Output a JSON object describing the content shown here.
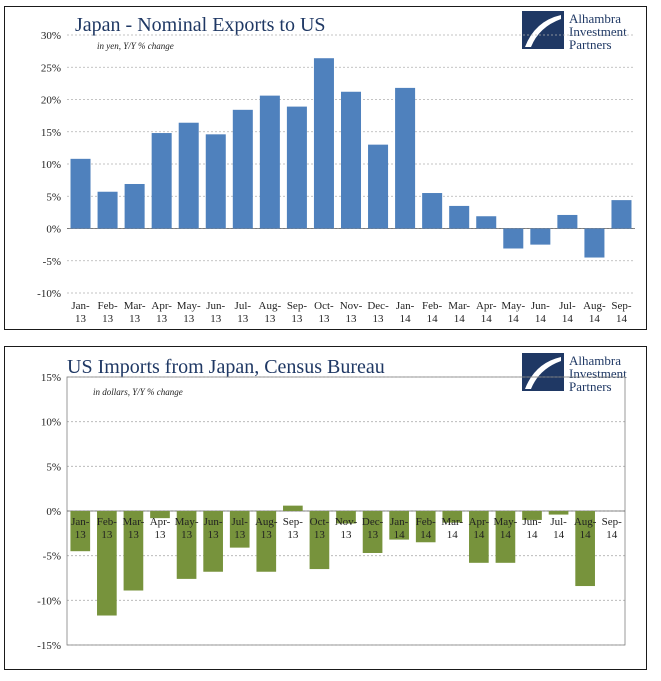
{
  "brand": {
    "logo_line1": "Alhambra",
    "logo_line2": "Investment",
    "logo_line3": "Partners"
  },
  "chart_data": [
    {
      "type": "bar",
      "title": "Japan - Nominal Exports to US",
      "subtitle": "in yen, Y/Y % change",
      "categories": [
        "Jan-13",
        "Feb-13",
        "Mar-13",
        "Apr-13",
        "May-13",
        "Jun-13",
        "Jul-13",
        "Aug-13",
        "Sep-13",
        "Oct-13",
        "Nov-13",
        "Dec-13",
        "Jan-14",
        "Feb-14",
        "Mar-14",
        "Apr-14",
        "May-14",
        "Jun-14",
        "Jul-14",
        "Aug-14",
        "Sep-14"
      ],
      "values": [
        10.8,
        5.7,
        6.9,
        14.8,
        16.4,
        14.6,
        18.4,
        20.6,
        18.9,
        26.4,
        21.2,
        13.0,
        21.8,
        5.5,
        3.5,
        1.9,
        -3.1,
        -2.5,
        2.1,
        -4.5,
        4.4
      ],
      "ylim": [
        -10,
        30
      ],
      "yticks": [
        -10,
        -5,
        0,
        5,
        10,
        15,
        20,
        25,
        30
      ],
      "ytick_labels": [
        "-10%",
        "-5%",
        "0%",
        "5%",
        "10%",
        "15%",
        "20%",
        "25%",
        "30%"
      ],
      "color": "#4f81bd",
      "grid": true
    },
    {
      "type": "bar",
      "title": "US Imports from Japan, Census Bureau",
      "subtitle": "in dollars, Y/Y % change",
      "categories": [
        "Jan-13",
        "Feb-13",
        "Mar-13",
        "Apr-13",
        "May-13",
        "Jun-13",
        "Jul-13",
        "Aug-13",
        "Sep-13",
        "Oct-13",
        "Nov-13",
        "Dec-13",
        "Jan-14",
        "Feb-14",
        "Mar-14",
        "Apr-14",
        "May-14",
        "Jun-14",
        "Jul-14",
        "Aug-14",
        "Sep-14"
      ],
      "values": [
        -4.5,
        -11.7,
        -8.9,
        -0.8,
        -7.6,
        -6.8,
        -4.1,
        -6.8,
        0.6,
        -6.5,
        -1.4,
        -4.7,
        -3.2,
        -3.5,
        -1.3,
        -5.8,
        -5.8,
        -1.0,
        -0.4,
        -8.4,
        0
      ],
      "ylim": [
        -15,
        15
      ],
      "yticks": [
        -15,
        -10,
        -5,
        0,
        5,
        10,
        15
      ],
      "ytick_labels": [
        "-15%",
        "-10%",
        "-5%",
        "0%",
        "5%",
        "10%",
        "15%"
      ],
      "color": "#77933c",
      "grid": true
    }
  ]
}
